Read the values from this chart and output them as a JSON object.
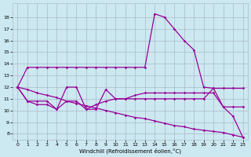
{
  "xlabel": "Windchill (Refroidissement éolien,°C)",
  "bg_color": "#cce8f0",
  "line_color": "#990099",
  "grid_color": "#aabbcc",
  "xlim": [
    -0.5,
    23.5
  ],
  "ylim": [
    7.5,
    19.2
  ],
  "yticks": [
    8,
    9,
    10,
    11,
    12,
    13,
    14,
    15,
    16,
    17,
    18
  ],
  "xticks": [
    0,
    1,
    2,
    3,
    4,
    5,
    6,
    7,
    8,
    9,
    10,
    11,
    12,
    13,
    14,
    15,
    16,
    17,
    18,
    19,
    20,
    21,
    22,
    23
  ],
  "lines": [
    {
      "x": [
        0,
        1,
        2,
        3,
        4,
        5,
        6,
        7,
        8,
        9,
        10,
        11,
        12,
        13,
        14,
        15,
        16,
        17,
        18,
        19,
        20,
        21,
        22,
        23
      ],
      "y": [
        12,
        13.7,
        13.7,
        13.7,
        13.7,
        13.7,
        13.7,
        13.7,
        13.7,
        13.7,
        13.7,
        13.7,
        13.7,
        13.7,
        18.3,
        18.0,
        17.0,
        16.0,
        15.2,
        12.0,
        11.9,
        10.3,
        9.5,
        7.7
      ]
    },
    {
      "x": [
        0,
        1,
        2,
        3,
        4,
        5,
        6,
        7,
        8,
        9,
        10,
        11,
        12,
        13,
        14,
        15,
        16,
        17,
        18,
        19,
        20,
        21,
        22,
        23
      ],
      "y": [
        12,
        10.8,
        10.8,
        10.8,
        10.1,
        10.8,
        10.8,
        10.1,
        10.5,
        10.8,
        11.0,
        11.0,
        11.3,
        11.5,
        11.5,
        11.5,
        11.5,
        11.5,
        11.5,
        11.5,
        11.5,
        10.3,
        10.3,
        10.3
      ]
    },
    {
      "x": [
        0,
        1,
        2,
        3,
        4,
        5,
        6,
        7,
        8,
        9,
        10,
        11,
        12,
        13,
        14,
        15,
        16,
        17,
        18,
        19,
        20,
        21,
        22,
        23
      ],
      "y": [
        12,
        10.8,
        10.5,
        10.5,
        10.1,
        12.0,
        12.0,
        10.1,
        10.1,
        11.8,
        11.0,
        11.0,
        11.0,
        11.0,
        11.0,
        11.0,
        11.0,
        11.0,
        11.0,
        11.0,
        11.9,
        11.9,
        11.9,
        11.9
      ]
    },
    {
      "x": [
        0,
        1,
        2,
        3,
        4,
        5,
        6,
        7,
        8,
        9,
        10,
        11,
        12,
        13,
        14,
        15,
        16,
        17,
        18,
        19,
        20,
        21,
        22,
        23
      ],
      "y": [
        12,
        11.8,
        11.5,
        11.3,
        11.1,
        10.8,
        10.6,
        10.4,
        10.2,
        10.0,
        9.8,
        9.6,
        9.4,
        9.3,
        9.1,
        8.9,
        8.7,
        8.6,
        8.4,
        8.3,
        8.2,
        8.1,
        7.9,
        7.7
      ]
    }
  ]
}
